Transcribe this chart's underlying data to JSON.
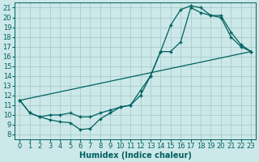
{
  "xlabel": "Humidex (Indice chaleur)",
  "bg_color": "#cce8e8",
  "line_color": "#006060",
  "grid_color": "#aacccc",
  "xlim": [
    -0.5,
    23.5
  ],
  "ylim": [
    7.5,
    21.5
  ],
  "xticks": [
    0,
    1,
    2,
    3,
    4,
    5,
    6,
    7,
    8,
    9,
    10,
    11,
    12,
    13,
    14,
    15,
    16,
    17,
    18,
    19,
    20,
    21,
    22,
    23
  ],
  "yticks": [
    8,
    9,
    10,
    11,
    12,
    13,
    14,
    15,
    16,
    17,
    18,
    19,
    20,
    21
  ],
  "line1_x": [
    0,
    1,
    2,
    3,
    4,
    5,
    6,
    7,
    8,
    9,
    10,
    11,
    12,
    13,
    14,
    15,
    16,
    17,
    18,
    19,
    20,
    21,
    22,
    23
  ],
  "line1_y": [
    11.5,
    10.2,
    9.8,
    9.5,
    9.3,
    9.2,
    8.5,
    8.6,
    9.6,
    10.2,
    10.8,
    11.0,
    12.0,
    14.0,
    16.5,
    19.2,
    20.8,
    21.2,
    21.0,
    20.2,
    20.2,
    18.5,
    17.2,
    16.5
  ],
  "line2_x": [
    0,
    1,
    2,
    3,
    4,
    5,
    6,
    7,
    8,
    9,
    10,
    11,
    12,
    13,
    14,
    15,
    16,
    17,
    18,
    19,
    20,
    21,
    22,
    23
  ],
  "line2_y": [
    11.5,
    10.2,
    9.8,
    10.0,
    10.0,
    10.2,
    9.8,
    9.8,
    10.2,
    10.5,
    10.8,
    11.0,
    12.5,
    14.0,
    16.5,
    16.5,
    17.5,
    21.0,
    20.5,
    20.2,
    20.0,
    18.0,
    17.0,
    16.5
  ],
  "line3_x": [
    0,
    23
  ],
  "line3_y": [
    11.5,
    16.5
  ],
  "fontsize_xlabel": 7,
  "fontsize_ticks": 6
}
